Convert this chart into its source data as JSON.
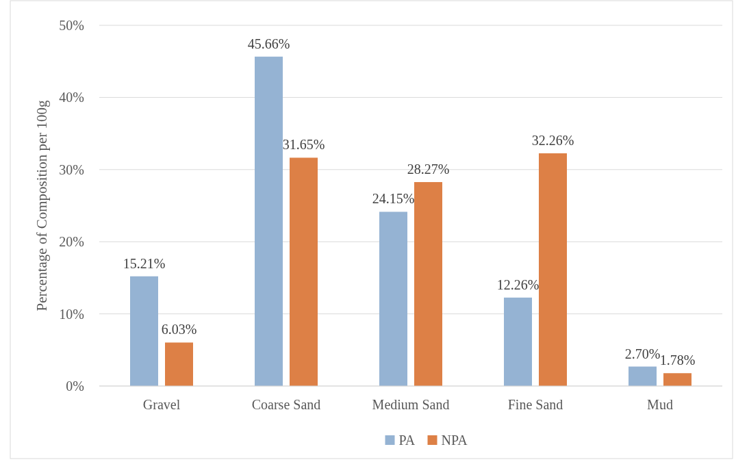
{
  "chart_data": {
    "type": "bar",
    "ylabel": "Percentage of Composition per 100g",
    "categories": [
      "Gravel",
      "Coarse Sand",
      "Medium Sand",
      "Fine Sand",
      "Mud"
    ],
    "series": [
      {
        "name": "PA",
        "color": "#95b3d3",
        "values": [
          15.21,
          45.66,
          24.15,
          12.26,
          2.7
        ],
        "value_labels": [
          "15.21%",
          "45.66%",
          "24.15%",
          "12.26%",
          "2.70%"
        ]
      },
      {
        "name": "NPA",
        "color": "#dd8046",
        "values": [
          6.03,
          31.65,
          28.27,
          32.26,
          1.78
        ],
        "value_labels": [
          "6.03%",
          "31.65%",
          "28.27%",
          "32.26%",
          "1.78%"
        ]
      }
    ],
    "ylim": [
      0,
      50
    ],
    "yticks": [
      {
        "value": 0,
        "label": "0%"
      },
      {
        "value": 10,
        "label": "10%"
      },
      {
        "value": 20,
        "label": "20%"
      },
      {
        "value": 30,
        "label": "30%"
      },
      {
        "value": 40,
        "label": "40%"
      },
      {
        "value": 50,
        "label": "50%"
      }
    ],
    "grid": "y",
    "legend": "bottom"
  }
}
